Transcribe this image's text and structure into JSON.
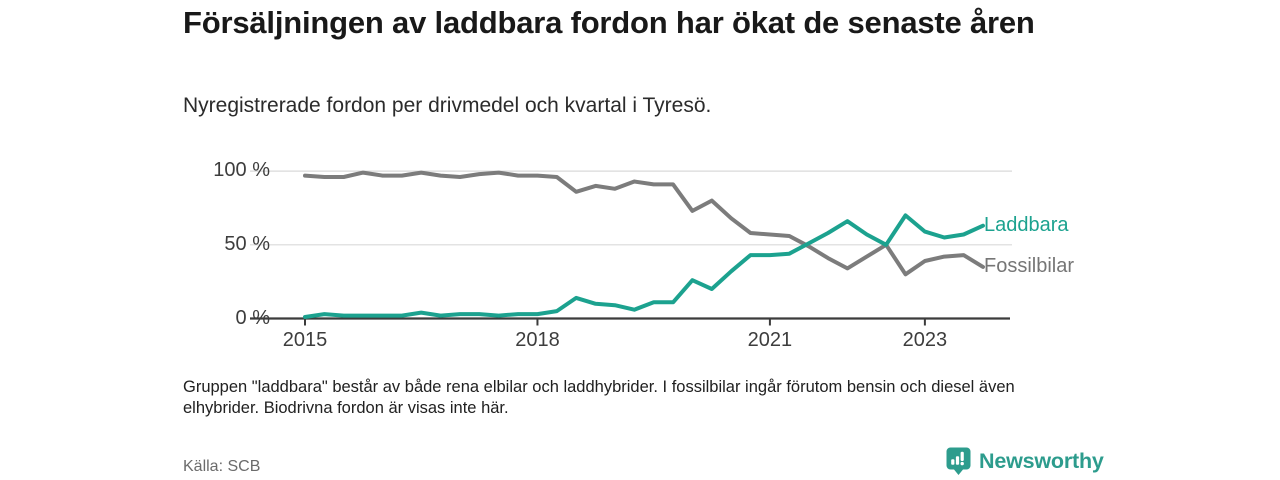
{
  "header": {
    "title": "Försäljningen av laddbara fordon har ökat de senaste åren",
    "subtitle": "Nyregistrerade fordon per drivmedel och kvartal i Tyresö."
  },
  "chart_data": {
    "type": "line",
    "title": "Nyregistrerade fordon per drivmedel och kvartal i Tyresö",
    "x_unit": "quarter",
    "categories": [
      "2015 Q1",
      "2015 Q2",
      "2015 Q3",
      "2015 Q4",
      "2016 Q1",
      "2016 Q2",
      "2016 Q3",
      "2016 Q4",
      "2017 Q1",
      "2017 Q2",
      "2017 Q3",
      "2017 Q4",
      "2018 Q1",
      "2018 Q2",
      "2018 Q3",
      "2018 Q4",
      "2019 Q1",
      "2019 Q2",
      "2019 Q3",
      "2019 Q4",
      "2020 Q1",
      "2020 Q2",
      "2020 Q3",
      "2020 Q4",
      "2021 Q1",
      "2021 Q2",
      "2021 Q3",
      "2021 Q4",
      "2022 Q1",
      "2022 Q2",
      "2022 Q3",
      "2022 Q4",
      "2023 Q1",
      "2023 Q2",
      "2023 Q3",
      "2023 Q4"
    ],
    "series": [
      {
        "name": "Fossilbilar",
        "color": "#7c7c7c",
        "label_color": "#767676",
        "values": [
          97,
          96,
          96,
          99,
          97,
          97,
          99,
          97,
          96,
          98,
          99,
          97,
          97,
          96,
          86,
          90,
          88,
          93,
          91,
          91,
          73,
          80,
          68,
          58,
          57,
          56,
          49,
          41,
          34,
          42,
          50,
          30,
          39,
          42,
          43,
          35
        ]
      },
      {
        "name": "Laddbara",
        "color": "#1ca28f",
        "label_color": "#1ca28f",
        "values": [
          1,
          3,
          2,
          2,
          2,
          2,
          4,
          2,
          3,
          3,
          2,
          3,
          3,
          5,
          14,
          10,
          9,
          6,
          11,
          11,
          26,
          20,
          32,
          43,
          43,
          44,
          51,
          58,
          66,
          57,
          50,
          70,
          59,
          55,
          57,
          63
        ]
      }
    ],
    "y_ticks": [
      {
        "value": 0,
        "label": "0 %"
      },
      {
        "value": 50,
        "label": "50 %"
      },
      {
        "value": 100,
        "label": "100 %"
      }
    ],
    "x_ticks": [
      {
        "year": 2015,
        "label": "2015"
      },
      {
        "year": 2018,
        "label": "2018"
      },
      {
        "year": 2021,
        "label": "2021"
      },
      {
        "year": 2023,
        "label": "2023"
      }
    ],
    "ylim": [
      0,
      100
    ],
    "grid": "horizontal",
    "legend_position": "right-of-line-ends",
    "colors": {
      "grid_line": "#dadada",
      "axis_line": "#3c3c3c"
    }
  },
  "footnote": "Gruppen \"laddbara\" består av både rena elbilar och laddhybrider. I fossilbilar ingår förutom bensin och diesel även elhybrider. Biodrivna fordon är visas inte här.",
  "footer": {
    "source": "Källa: SCB",
    "brand": "Newsworthy"
  }
}
